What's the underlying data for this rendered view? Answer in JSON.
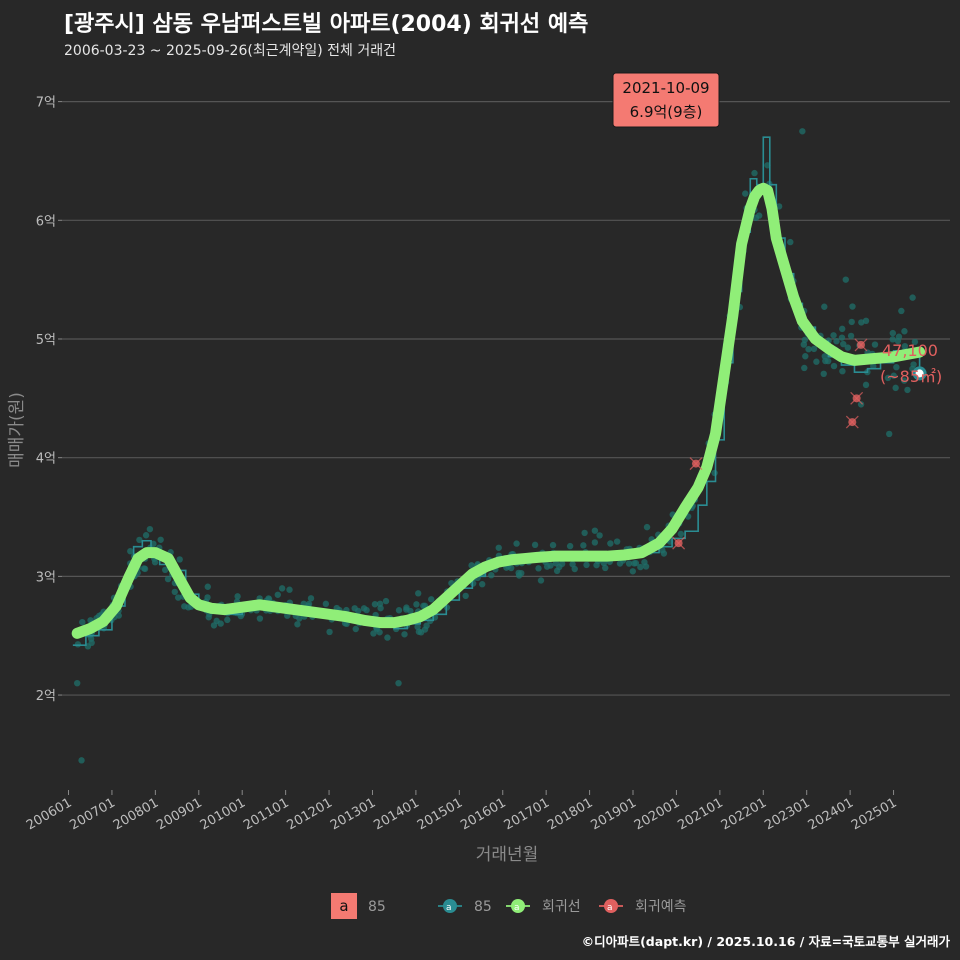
{
  "header": {
    "title": "[광주시] 삼동 우남퍼스트빌 아파트(2004) 회귀선 예측",
    "subtitle": "2006-03-23 ~ 2025-09-26(최근계약일) 전체 거래건"
  },
  "credit": "©디아파트(dapt.kr) / 2025.10.16 / 자료=국토교통부 실거래가",
  "colors": {
    "background": "#282828",
    "grid": "#555555",
    "trade_points": "#1f6f6a",
    "avg_line": "#2a8c92",
    "regression": "#90ee78",
    "prediction": "#e0605f",
    "annotation_bg": "#f47a72"
  },
  "chart_data": {
    "type": "line",
    "xlabel": "거래년월",
    "ylabel": "매매가(원)",
    "ylim": [
      1.2,
      7.3
    ],
    "y_ticks": [
      {
        "value": 2,
        "label": "2억"
      },
      {
        "value": 3,
        "label": "3억"
      },
      {
        "value": 4,
        "label": "4억"
      },
      {
        "value": 5,
        "label": "5억"
      },
      {
        "value": 6,
        "label": "6억"
      },
      {
        "value": 7,
        "label": "7억"
      }
    ],
    "xlim": [
      2005.85,
      2026.3
    ],
    "x_ticks": [
      {
        "value": 2006.0,
        "label": "200601"
      },
      {
        "value": 2007.0,
        "label": "200701"
      },
      {
        "value": 2008.0,
        "label": "200801"
      },
      {
        "value": 2009.0,
        "label": "200901"
      },
      {
        "value": 2010.0,
        "label": "201001"
      },
      {
        "value": 2011.0,
        "label": "201101"
      },
      {
        "value": 2012.0,
        "label": "201201"
      },
      {
        "value": 2013.0,
        "label": "201301"
      },
      {
        "value": 2014.0,
        "label": "201401"
      },
      {
        "value": 2015.0,
        "label": "201501"
      },
      {
        "value": 2016.0,
        "label": "201601"
      },
      {
        "value": 2017.0,
        "label": "201701"
      },
      {
        "value": 2018.0,
        "label": "201801"
      },
      {
        "value": 2019.0,
        "label": "201901"
      },
      {
        "value": 2020.0,
        "label": "202001"
      },
      {
        "value": 2021.0,
        "label": "202101"
      },
      {
        "value": 2022.0,
        "label": "202201"
      },
      {
        "value": 2023.0,
        "label": "202301"
      },
      {
        "value": 2024.0,
        "label": "202401"
      },
      {
        "value": 2025.0,
        "label": "202501"
      }
    ],
    "regression": {
      "name": "회귀선",
      "x": [
        2006.2,
        2006.5,
        2006.8,
        2007.1,
        2007.4,
        2007.6,
        2007.8,
        2008.0,
        2008.3,
        2008.6,
        2008.8,
        2009.0,
        2009.3,
        2009.6,
        2010.0,
        2010.4,
        2010.8,
        2011.2,
        2011.6,
        2012.0,
        2012.4,
        2012.8,
        2013.2,
        2013.5,
        2013.8,
        2014.1,
        2014.4,
        2014.7,
        2015.0,
        2015.3,
        2015.6,
        2015.9,
        2016.2,
        2016.5,
        2016.8,
        2017.2,
        2017.6,
        2018.0,
        2018.4,
        2018.8,
        2019.2,
        2019.6,
        2019.9,
        2020.2,
        2020.5,
        2020.7,
        2020.9,
        2021.1,
        2021.3,
        2021.5,
        2021.7,
        2021.8,
        2021.9,
        2022.0,
        2022.1,
        2022.2,
        2022.3,
        2022.5,
        2022.7,
        2022.9,
        2023.2,
        2023.5,
        2023.8,
        2024.1,
        2024.4,
        2024.7,
        2025.0,
        2025.3,
        2025.6
      ],
      "values": [
        2.52,
        2.56,
        2.62,
        2.75,
        3.0,
        3.15,
        3.2,
        3.2,
        3.15,
        2.95,
        2.82,
        2.76,
        2.73,
        2.72,
        2.74,
        2.76,
        2.74,
        2.72,
        2.7,
        2.68,
        2.66,
        2.63,
        2.61,
        2.61,
        2.63,
        2.66,
        2.72,
        2.82,
        2.92,
        3.02,
        3.08,
        3.12,
        3.14,
        3.15,
        3.16,
        3.17,
        3.17,
        3.17,
        3.17,
        3.18,
        3.2,
        3.28,
        3.4,
        3.58,
        3.75,
        3.92,
        4.2,
        4.7,
        5.2,
        5.8,
        6.1,
        6.2,
        6.25,
        6.27,
        6.25,
        6.1,
        5.85,
        5.6,
        5.35,
        5.15,
        5.0,
        4.92,
        4.85,
        4.82,
        4.83,
        4.84,
        4.85,
        4.87,
        4.89
      ]
    },
    "avg_line": {
      "name": "85",
      "x": [
        2006.1,
        2006.4,
        2006.7,
        2007.0,
        2007.3,
        2007.5,
        2007.7,
        2007.9,
        2008.1,
        2008.4,
        2008.7,
        2009.0,
        2009.3,
        2009.6,
        2010.0,
        2010.4,
        2010.8,
        2011.2,
        2011.6,
        2012.0,
        2012.4,
        2012.8,
        2013.2,
        2013.5,
        2013.8,
        2014.1,
        2014.4,
        2014.7,
        2015.0,
        2015.3,
        2015.6,
        2015.9,
        2016.2,
        2016.5,
        2016.8,
        2017.2,
        2017.6,
        2018.0,
        2018.4,
        2018.8,
        2019.2,
        2019.6,
        2019.9,
        2020.2,
        2020.5,
        2020.7,
        2020.9,
        2021.1,
        2021.3,
        2021.5,
        2021.7,
        2021.85,
        2022.0,
        2022.15,
        2022.3,
        2022.5,
        2022.7,
        2022.9,
        2023.2,
        2023.5,
        2023.8,
        2024.1,
        2024.4,
        2024.7,
        2025.0,
        2025.3,
        2025.6
      ],
      "values": [
        2.42,
        2.5,
        2.55,
        2.75,
        3.0,
        3.25,
        3.3,
        3.2,
        3.1,
        3.05,
        2.85,
        2.72,
        2.7,
        2.68,
        2.73,
        2.75,
        2.71,
        2.73,
        2.7,
        2.66,
        2.65,
        2.6,
        2.58,
        2.56,
        2.6,
        2.63,
        2.68,
        2.8,
        2.9,
        3.0,
        3.1,
        3.15,
        3.13,
        3.17,
        3.15,
        3.17,
        3.18,
        3.15,
        3.15,
        3.18,
        3.2,
        3.25,
        3.32,
        3.38,
        3.6,
        3.8,
        4.15,
        4.8,
        5.4,
        5.9,
        6.35,
        6.3,
        6.7,
        6.3,
        5.85,
        5.55,
        5.3,
        5.1,
        4.98,
        4.85,
        4.78,
        4.72,
        4.75,
        4.8,
        4.9,
        4.85,
        4.71
      ]
    },
    "predictions": {
      "name": "회귀예측",
      "x": [
        2020.05,
        2020.45,
        2024.05,
        2024.15,
        2024.25
      ],
      "values": [
        3.28,
        3.95,
        4.3,
        4.5,
        4.95
      ]
    },
    "latest_point": {
      "x": 2025.6,
      "value": 4.71,
      "label_price": "47,100",
      "label_size": "(~85㎡)"
    },
    "max_annotation": {
      "x": 2022.0,
      "date": "2021-10-09",
      "price": "6.9억(9층)"
    },
    "scatter_seed": 7
  },
  "legend": {
    "swatch_letter": "a",
    "items": [
      {
        "label": "85"
      },
      {
        "label": "85"
      },
      {
        "label": "회귀선"
      },
      {
        "label": "회귀예측"
      }
    ]
  }
}
